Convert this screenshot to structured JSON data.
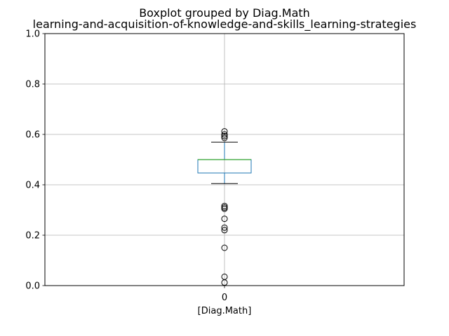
{
  "title": "Boxplot grouped by Diag.Math",
  "subtitle": "learning-and-acquisition-of-knowledge-and-skills_learning-strategies",
  "chart_data": {
    "type": "boxplot",
    "categories": [
      "0"
    ],
    "xlabel": "[Diag.Math]",
    "ylabel": "",
    "ylim": [
      0,
      1.0
    ],
    "yticks": [
      "0.0",
      "0.2",
      "0.4",
      "0.6",
      "0.8",
      "1.0"
    ],
    "grid": true,
    "boxes": [
      {
        "category": "0",
        "whisker_low": 0.405,
        "q1": 0.447,
        "median": 0.5,
        "q3": 0.5,
        "whisker_high": 0.569,
        "outliers": [
          0.612,
          0.6,
          0.593,
          0.586,
          0.316,
          0.31,
          0.305,
          0.265,
          0.23,
          0.22,
          0.15,
          0.035,
          0.012
        ]
      }
    ],
    "colors": {
      "box": "#1f77b4",
      "median": "#2ca02c",
      "whisker": "#000000",
      "grid": "#b0b0b0"
    }
  }
}
